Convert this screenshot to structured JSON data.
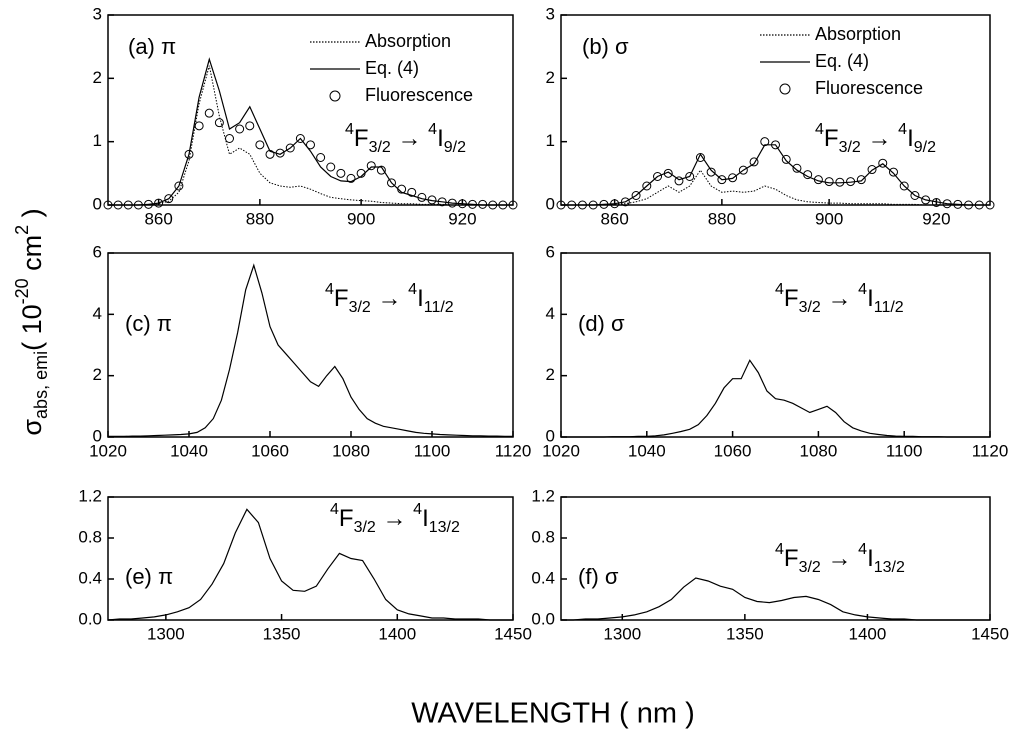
{
  "axis_labels": {
    "x": "WAVELENGTH ( nm )",
    "y": {
      "symbol": "σ",
      "symbol_sub": "abs, emi",
      "open": "( 10",
      "exp": "-20",
      "mid": " cm",
      "exp2": "2",
      "close": " )"
    }
  },
  "chart_data": [
    {
      "type": "line",
      "panel_label": "(a) π",
      "transition": {
        "sup1": "4",
        "level1": "F",
        "sub1": "3/2",
        "arrow": " → ",
        "sup2": "4",
        "level2": "I",
        "sub2": "9/2"
      },
      "legend": "upper right",
      "x": [
        850,
        852,
        854,
        856,
        858,
        860,
        862,
        864,
        866,
        868,
        870,
        872,
        874,
        876,
        878,
        880,
        882,
        884,
        886,
        888,
        890,
        892,
        894,
        896,
        898,
        900,
        902,
        904,
        906,
        908,
        910,
        912,
        914,
        916,
        918,
        920,
        922,
        924,
        926,
        928,
        930
      ],
      "xlim": [
        850,
        930
      ],
      "xticks": [
        860,
        880,
        900,
        920
      ],
      "ylim": [
        0,
        3
      ],
      "yticks": [
        0,
        1,
        2,
        3
      ],
      "series": [
        {
          "name": "Absorption",
          "style": "dotted",
          "color": "#000000",
          "values": [
            0,
            0,
            0,
            0,
            0.01,
            0.02,
            0.06,
            0.2,
            0.7,
            1.6,
            2.2,
            1.4,
            0.8,
            0.9,
            0.8,
            0.5,
            0.35,
            0.3,
            0.28,
            0.3,
            0.25,
            0.18,
            0.12,
            0.1,
            0.08,
            0.07,
            0.06,
            0.04,
            0.03,
            0.02,
            0.02,
            0.01,
            0.01,
            0.01,
            0,
            0,
            0,
            0,
            0,
            0,
            0
          ]
        },
        {
          "name": "Eq. (4)",
          "style": "solid",
          "color": "#000000",
          "values": [
            0,
            0,
            0,
            0,
            0.01,
            0.03,
            0.1,
            0.3,
            0.8,
            1.7,
            2.3,
            1.8,
            1.2,
            1.3,
            1.55,
            1.2,
            0.85,
            0.8,
            0.9,
            1.05,
            0.85,
            0.6,
            0.45,
            0.38,
            0.37,
            0.45,
            0.6,
            0.6,
            0.35,
            0.2,
            0.15,
            0.1,
            0.07,
            0.05,
            0.03,
            0.02,
            0.01,
            0,
            0,
            0,
            0
          ]
        },
        {
          "name": "Fluorescence",
          "style": "circles",
          "color": "#000000",
          "values": [
            0,
            0,
            0,
            0,
            0.01,
            0.03,
            0.1,
            0.3,
            0.8,
            1.25,
            1.45,
            1.3,
            1.05,
            1.2,
            1.25,
            0.95,
            0.8,
            0.82,
            0.9,
            1.05,
            0.95,
            0.75,
            0.6,
            0.5,
            0.42,
            0.5,
            0.62,
            0.55,
            0.35,
            0.25,
            0.2,
            0.12,
            0.08,
            0.05,
            0.03,
            0.02,
            0.01,
            0.01,
            0,
            0,
            0
          ]
        }
      ]
    },
    {
      "type": "line",
      "panel_label": "(b) σ",
      "transition": {
        "sup1": "4",
        "level1": "F",
        "sub1": "3/2",
        "arrow": " → ",
        "sup2": "4",
        "level2": "I",
        "sub2": "9/2"
      },
      "legend": "upper right",
      "x": [
        850,
        852,
        854,
        856,
        858,
        860,
        862,
        864,
        866,
        868,
        870,
        872,
        874,
        876,
        878,
        880,
        882,
        884,
        886,
        888,
        890,
        892,
        894,
        896,
        898,
        900,
        902,
        904,
        906,
        908,
        910,
        912,
        914,
        916,
        918,
        920,
        922,
        924,
        926,
        928,
        930
      ],
      "xlim": [
        850,
        930
      ],
      "xticks": [
        860,
        880,
        900,
        920
      ],
      "ylim": [
        0,
        3
      ],
      "yticks": [
        0,
        1,
        2,
        3
      ],
      "series": [
        {
          "name": "Absorption",
          "style": "dotted",
          "color": "#000000",
          "values": [
            0,
            0,
            0,
            0,
            0,
            0.01,
            0.02,
            0.05,
            0.1,
            0.2,
            0.3,
            0.2,
            0.3,
            0.55,
            0.3,
            0.2,
            0.22,
            0.2,
            0.22,
            0.3,
            0.25,
            0.15,
            0.08,
            0.05,
            0.04,
            0.03,
            0.03,
            0.02,
            0.02,
            0.02,
            0.02,
            0.01,
            0.01,
            0.01,
            0,
            0,
            0,
            0,
            0,
            0,
            0
          ]
        },
        {
          "name": "Eq. (4)",
          "style": "solid",
          "color": "#000000",
          "values": [
            0,
            0,
            0,
            0,
            0.01,
            0.02,
            0.05,
            0.15,
            0.3,
            0.45,
            0.52,
            0.4,
            0.45,
            0.8,
            0.55,
            0.4,
            0.42,
            0.55,
            0.65,
            0.95,
            0.95,
            0.7,
            0.55,
            0.45,
            0.38,
            0.35,
            0.35,
            0.36,
            0.38,
            0.55,
            0.65,
            0.5,
            0.3,
            0.15,
            0.08,
            0.05,
            0.02,
            0.01,
            0,
            0,
            0
          ]
        },
        {
          "name": "Fluorescence",
          "style": "circles",
          "color": "#000000",
          "values": [
            0,
            0,
            0,
            0,
            0.01,
            0.02,
            0.05,
            0.15,
            0.3,
            0.45,
            0.5,
            0.38,
            0.45,
            0.75,
            0.52,
            0.4,
            0.43,
            0.55,
            0.68,
            1.0,
            0.95,
            0.72,
            0.58,
            0.48,
            0.4,
            0.37,
            0.36,
            0.37,
            0.4,
            0.56,
            0.66,
            0.52,
            0.3,
            0.15,
            0.08,
            0.04,
            0.02,
            0.01,
            0,
            0,
            0
          ]
        }
      ]
    },
    {
      "type": "line",
      "panel_label": "(c) π",
      "transition": {
        "sup1": "4",
        "level1": "F",
        "sub1": "3/2",
        "arrow": " → ",
        "sup2": "4",
        "level2": "I",
        "sub2": "11/2"
      },
      "x": [
        1020,
        1022,
        1024,
        1026,
        1028,
        1030,
        1032,
        1034,
        1036,
        1038,
        1040,
        1042,
        1044,
        1046,
        1048,
        1050,
        1052,
        1054,
        1056,
        1058,
        1060,
        1062,
        1064,
        1066,
        1068,
        1070,
        1072,
        1074,
        1076,
        1078,
        1080,
        1082,
        1084,
        1086,
        1088,
        1090,
        1092,
        1094,
        1096,
        1098,
        1100,
        1102,
        1104,
        1106,
        1108,
        1110,
        1112,
        1114,
        1116,
        1118,
        1120
      ],
      "xlim": [
        1020,
        1120
      ],
      "xticks": [
        1020,
        1040,
        1060,
        1080,
        1100,
        1120
      ],
      "ylim": [
        0,
        6
      ],
      "yticks": [
        0,
        2,
        4,
        6
      ],
      "series": [
        {
          "style": "solid",
          "color": "#000000",
          "values": [
            0.02,
            0.02,
            0.02,
            0.03,
            0.03,
            0.04,
            0.05,
            0.06,
            0.07,
            0.08,
            0.1,
            0.15,
            0.3,
            0.6,
            1.2,
            2.2,
            3.4,
            4.8,
            5.6,
            4.7,
            3.6,
            3.0,
            2.7,
            2.4,
            2.1,
            1.8,
            1.65,
            2.0,
            2.3,
            1.9,
            1.3,
            0.9,
            0.6,
            0.45,
            0.35,
            0.3,
            0.25,
            0.2,
            0.15,
            0.12,
            0.1,
            0.08,
            0.07,
            0.06,
            0.05,
            0.04,
            0.04,
            0.03,
            0.03,
            0.02,
            0.02
          ]
        }
      ]
    },
    {
      "type": "line",
      "panel_label": "(d) σ",
      "transition": {
        "sup1": "4",
        "level1": "F",
        "sub1": "3/2",
        "arrow": " → ",
        "sup2": "4",
        "level2": "I",
        "sub2": "11/2"
      },
      "x": [
        1020,
        1022,
        1024,
        1026,
        1028,
        1030,
        1032,
        1034,
        1036,
        1038,
        1040,
        1042,
        1044,
        1046,
        1048,
        1050,
        1052,
        1054,
        1056,
        1058,
        1060,
        1062,
        1064,
        1066,
        1068,
        1070,
        1072,
        1074,
        1076,
        1078,
        1080,
        1082,
        1084,
        1086,
        1088,
        1090,
        1092,
        1094,
        1096,
        1098,
        1100,
        1102,
        1104,
        1106,
        1108,
        1110,
        1112,
        1114,
        1116,
        1118,
        1120
      ],
      "xlim": [
        1020,
        1120
      ],
      "xticks": [
        1020,
        1040,
        1060,
        1080,
        1100,
        1120
      ],
      "ylim": [
        0,
        6
      ],
      "yticks": [
        0,
        2,
        4,
        6
      ],
      "series": [
        {
          "style": "solid",
          "color": "#000000",
          "values": [
            0,
            0,
            0,
            0,
            0,
            0,
            0.01,
            0.01,
            0.01,
            0.02,
            0.02,
            0.04,
            0.07,
            0.12,
            0.18,
            0.25,
            0.4,
            0.7,
            1.1,
            1.6,
            1.9,
            1.9,
            2.5,
            2.1,
            1.5,
            1.25,
            1.2,
            1.1,
            0.95,
            0.8,
            0.9,
            1.0,
            0.8,
            0.5,
            0.3,
            0.2,
            0.12,
            0.08,
            0.05,
            0.03,
            0.02,
            0.02,
            0.01,
            0.01,
            0.01,
            0,
            0,
            0,
            0,
            0,
            0
          ]
        }
      ]
    },
    {
      "type": "line",
      "panel_label": "(e) π",
      "transition": {
        "sup1": "4",
        "level1": "F",
        "sub1": "3/2",
        "arrow": " → ",
        "sup2": "4",
        "level2": "I",
        "sub2": "13/2"
      },
      "x": [
        1275,
        1280,
        1285,
        1290,
        1295,
        1300,
        1305,
        1310,
        1315,
        1320,
        1325,
        1330,
        1335,
        1340,
        1345,
        1350,
        1355,
        1360,
        1365,
        1370,
        1375,
        1380,
        1385,
        1390,
        1395,
        1400,
        1405,
        1410,
        1415,
        1420,
        1425,
        1430,
        1435,
        1440,
        1445,
        1450
      ],
      "xlim": [
        1275,
        1450
      ],
      "xticks": [
        1300,
        1350,
        1400,
        1450
      ],
      "ylim": [
        0,
        1.2
      ],
      "yticks": [
        {
          "value": 0,
          "label": "0.0"
        },
        0.4,
        0.8,
        1.2
      ],
      "series": [
        {
          "style": "solid",
          "color": "#000000",
          "values": [
            0,
            0.01,
            0.01,
            0.02,
            0.03,
            0.05,
            0.08,
            0.12,
            0.2,
            0.35,
            0.55,
            0.85,
            1.08,
            0.95,
            0.6,
            0.38,
            0.29,
            0.28,
            0.33,
            0.5,
            0.65,
            0.6,
            0.58,
            0.4,
            0.2,
            0.1,
            0.06,
            0.04,
            0.02,
            0.02,
            0.01,
            0.01,
            0.01,
            0,
            0,
            0
          ]
        }
      ]
    },
    {
      "type": "line",
      "panel_label": "(f) σ",
      "transition": {
        "sup1": "4",
        "level1": "F",
        "sub1": "3/2",
        "arrow": " → ",
        "sup2": "4",
        "level2": "I",
        "sub2": "13/2"
      },
      "x": [
        1275,
        1280,
        1285,
        1290,
        1295,
        1300,
        1305,
        1310,
        1315,
        1320,
        1325,
        1330,
        1335,
        1340,
        1345,
        1350,
        1355,
        1360,
        1365,
        1370,
        1375,
        1380,
        1385,
        1390,
        1395,
        1400,
        1405,
        1410,
        1415,
        1420,
        1425,
        1430,
        1435,
        1440,
        1445,
        1450
      ],
      "xlim": [
        1275,
        1450
      ],
      "xticks": [
        1300,
        1350,
        1400,
        1450
      ],
      "ylim": [
        0,
        1.2
      ],
      "yticks": [
        {
          "value": 0,
          "label": "0.0"
        },
        0.4,
        0.8,
        1.2
      ],
      "series": [
        {
          "style": "solid",
          "color": "#000000",
          "values": [
            0,
            0,
            0.01,
            0.01,
            0.02,
            0.03,
            0.05,
            0.08,
            0.13,
            0.2,
            0.32,
            0.41,
            0.38,
            0.33,
            0.3,
            0.22,
            0.18,
            0.17,
            0.19,
            0.22,
            0.23,
            0.2,
            0.15,
            0.08,
            0.05,
            0.03,
            0.02,
            0.01,
            0.01,
            0,
            0,
            0,
            0,
            0,
            0,
            0
          ]
        }
      ]
    }
  ]
}
